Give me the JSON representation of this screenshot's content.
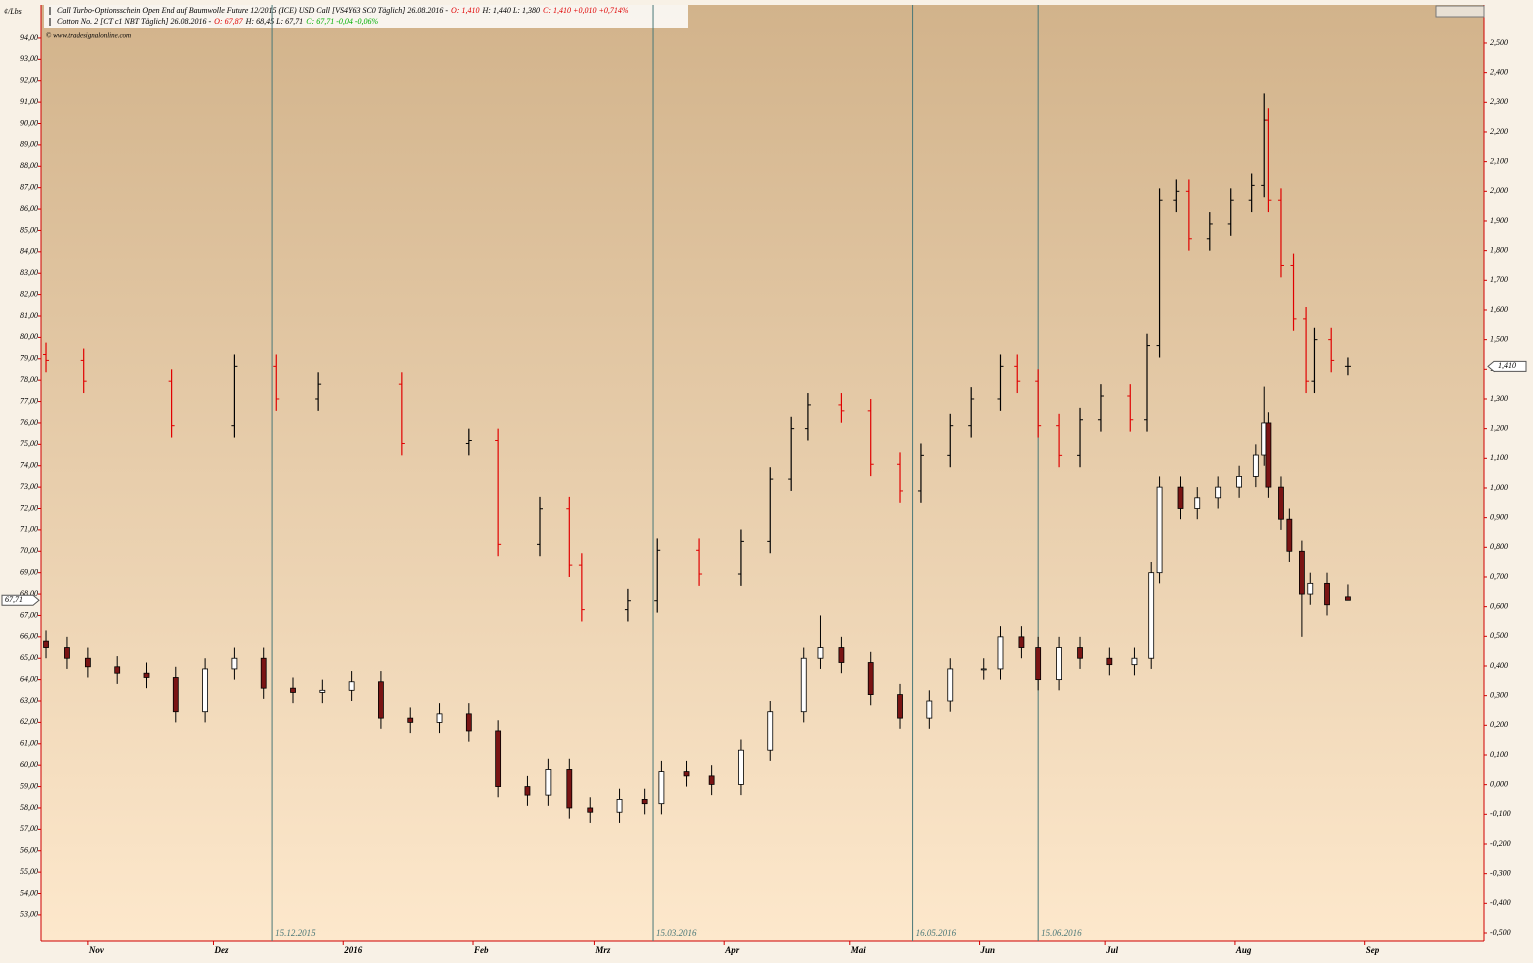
{
  "chart_data": {
    "type": "ohlc-combo",
    "y_unit": "¢/Lbs",
    "copyright": "© www.tradesignalonline.com",
    "legend": [
      {
        "parts": [
          {
            "text": "Call Turbo-Optionsschein Open End auf Baumwolle Future 12/2015 (ICE) USD Call [VS4Y63 SC0  Täglich] 26.08.2016 -",
            "color": "#000000"
          },
          {
            "text": "O: 1,410",
            "color": "#e00000"
          },
          {
            "text": "H: 1,440 L: 1,380",
            "color": "#000000"
          },
          {
            "text": "C: 1,410 +0,010 +0,714%",
            "color": "#e00000"
          }
        ]
      },
      {
        "parts": [
          {
            "text": "Cotton No. 2 [CT c1 NBT  Täglich] 26.08.2016 -",
            "color": "#000000"
          },
          {
            "text": "O: 67,87",
            "color": "#e00000"
          },
          {
            "text": "H: 68,45 L: 67,71",
            "color": "#000000"
          },
          {
            "text": "C: 67,71 -0,04 -0,06%",
            "color": "#00b000"
          }
        ]
      }
    ],
    "xlim": [
      -11.2,
      333.5
    ],
    "xticks": [
      {
        "value": 0,
        "label": "Nov"
      },
      {
        "value": 30,
        "label": "Dez"
      },
      {
        "value": 61,
        "label": "2016"
      },
      {
        "value": 92,
        "label": "Feb"
      },
      {
        "value": 121,
        "label": "Mrz"
      },
      {
        "value": 152,
        "label": "Apr"
      },
      {
        "value": 182,
        "label": "Mai"
      },
      {
        "value": 213,
        "label": "Jun"
      },
      {
        "value": 243,
        "label": "Jul"
      },
      {
        "value": 274,
        "label": "Aug"
      },
      {
        "value": 305,
        "label": "Sep"
      }
    ],
    "markers": [
      {
        "value": 44,
        "label": "15.12.2015"
      },
      {
        "value": 135,
        "label": "15.03.2016"
      },
      {
        "value": 197,
        "label": "16.05.2016"
      },
      {
        "value": 227,
        "label": "15.06.2016"
      }
    ],
    "marker_color": "#4a7878",
    "ylim": [
      51.78,
      95.54
    ],
    "yticks": [
      {
        "value": 53,
        "label": "53,00"
      },
      {
        "value": 54,
        "label": "54,00"
      },
      {
        "value": 55,
        "label": "55,00"
      },
      {
        "value": 56,
        "label": "56,00"
      },
      {
        "value": 57,
        "label": "57,00"
      },
      {
        "value": 58,
        "label": "58,00"
      },
      {
        "value": 59,
        "label": "59,00"
      },
      {
        "value": 60,
        "label": "60,00"
      },
      {
        "value": 61,
        "label": "61,00"
      },
      {
        "value": 62,
        "label": "62,00"
      },
      {
        "value": 63,
        "label": "63,00"
      },
      {
        "value": 64,
        "label": "64,00"
      },
      {
        "value": 65,
        "label": "65,00"
      },
      {
        "value": 66,
        "label": "66,00"
      },
      {
        "value": 67,
        "label": "67,00"
      },
      {
        "value": 68,
        "label": "68,00"
      },
      {
        "value": 69,
        "label": "69,00"
      },
      {
        "value": 70,
        "label": "70,00"
      },
      {
        "value": 71,
        "label": "71,00"
      },
      {
        "value": 72,
        "label": "72,00"
      },
      {
        "value": 73,
        "label": "73,00"
      },
      {
        "value": 74,
        "label": "74,00"
      },
      {
        "value": 75,
        "label": "75,00"
      },
      {
        "value": 76,
        "label": "76,00"
      },
      {
        "value": 77,
        "label": "77,00"
      },
      {
        "value": 78,
        "label": "78,00"
      },
      {
        "value": 79,
        "label": "79,00"
      },
      {
        "value": 80,
        "label": "80,00"
      },
      {
        "value": 81,
        "label": "81,00"
      },
      {
        "value": 82,
        "label": "82,00"
      },
      {
        "value": 83,
        "label": "83,00"
      },
      {
        "value": 84,
        "label": "84,00"
      },
      {
        "value": 85,
        "label": "85,00"
      },
      {
        "value": 86,
        "label": "86,00"
      },
      {
        "value": 87,
        "label": "87,00"
      },
      {
        "value": 88,
        "label": "88,00"
      },
      {
        "value": 89,
        "label": "89,00"
      },
      {
        "value": 90,
        "label": "90,00"
      },
      {
        "value": 91,
        "label": "91,00"
      },
      {
        "value": 92,
        "label": "92,00"
      },
      {
        "value": 93,
        "label": "93,00"
      },
      {
        "value": 94,
        "label": "94,00"
      }
    ],
    "y2lim": [
      -0.527,
      2.628
    ],
    "y2ticks": [
      {
        "value": -0.5,
        "label": "-0,500"
      },
      {
        "value": -0.4,
        "label": "-0,400"
      },
      {
        "value": -0.3,
        "label": "-0,300"
      },
      {
        "value": -0.2,
        "label": "-0,200"
      },
      {
        "value": -0.1,
        "label": "-0,100"
      },
      {
        "value": 0,
        "label": "0,000"
      },
      {
        "value": 0.1,
        "label": "0,100"
      },
      {
        "value": 0.2,
        "label": "0,200"
      },
      {
        "value": 0.3,
        "label": "0,300"
      },
      {
        "value": 0.4,
        "label": "0,400"
      },
      {
        "value": 0.5,
        "label": "0,500"
      },
      {
        "value": 0.6,
        "label": "0,600"
      },
      {
        "value": 0.7,
        "label": "0,700"
      },
      {
        "value": 0.8,
        "label": "0,800"
      },
      {
        "value": 0.9,
        "label": "0,900"
      },
      {
        "value": 1.0,
        "label": "1,000"
      },
      {
        "value": 1.1,
        "label": "1,100"
      },
      {
        "value": 1.2,
        "label": "1,200"
      },
      {
        "value": 1.3,
        "label": "1,300"
      },
      {
        "value": 1.4,
        "label": "1,400"
      },
      {
        "value": 1.5,
        "label": "1,500"
      },
      {
        "value": 1.6,
        "label": "1,600"
      },
      {
        "value": 1.7,
        "label": "1,700"
      },
      {
        "value": 1.8,
        "label": "1,800"
      },
      {
        "value": 1.9,
        "label": "1,900"
      },
      {
        "value": 2.0,
        "label": "2,000"
      },
      {
        "value": 2.1,
        "label": "2,100"
      },
      {
        "value": 2.2,
        "label": "2,200"
      },
      {
        "value": 2.3,
        "label": "2,300"
      },
      {
        "value": 2.4,
        "label": "2,400"
      },
      {
        "value": 2.5,
        "label": "2,500"
      }
    ],
    "series": [
      {
        "style": "candle",
        "axis": "y",
        "up_color": "#ffffff",
        "down_color": "#7a1414",
        "last_label": "67,71",
        "x": [
          -10,
          -5,
          0,
          7,
          14,
          21,
          28,
          35,
          42,
          49,
          56,
          63,
          70,
          77,
          84,
          91,
          98,
          105,
          110,
          115,
          120,
          127,
          133,
          137,
          143,
          149,
          156,
          163,
          171,
          175,
          180,
          187,
          194,
          201,
          206,
          214,
          218,
          223,
          227,
          232,
          237,
          244,
          250,
          254,
          256,
          261,
          265,
          270,
          275,
          279,
          281,
          282,
          285,
          287,
          290,
          292,
          296,
          301
        ],
        "open": [
          65.8,
          65.5,
          65.0,
          64.6,
          64.3,
          64.1,
          62.5,
          64.5,
          65.0,
          63.6,
          63.4,
          63.5,
          63.9,
          62.2,
          62.0,
          62.4,
          61.6,
          59.0,
          58.6,
          59.8,
          58.0,
          57.8,
          58.4,
          58.2,
          59.7,
          59.5,
          59.1,
          60.7,
          62.5,
          65.0,
          65.5,
          64.8,
          63.3,
          62.2,
          63.0,
          64.5,
          64.5,
          66.0,
          65.5,
          64.0,
          65.5,
          65.0,
          64.7,
          65.0,
          69.0,
          73.0,
          72.0,
          72.5,
          73.0,
          73.5,
          74.5,
          76.0,
          73.0,
          71.5,
          70.0,
          68.0,
          68.5,
          67.87
        ],
        "high": [
          66.3,
          66.0,
          65.5,
          65.1,
          64.8,
          64.6,
          65.0,
          65.5,
          65.5,
          64.1,
          64.0,
          64.4,
          64.4,
          62.7,
          62.9,
          62.9,
          62.1,
          59.5,
          60.3,
          60.3,
          58.5,
          58.9,
          58.9,
          60.2,
          60.2,
          60.0,
          61.2,
          63.0,
          65.5,
          67.0,
          66.0,
          65.3,
          63.8,
          63.5,
          65.0,
          65.0,
          66.5,
          66.5,
          66.0,
          66.0,
          66.0,
          65.5,
          65.5,
          69.5,
          73.5,
          73.5,
          73.0,
          73.5,
          74.0,
          75.0,
          77.7,
          76.5,
          73.5,
          72.0,
          70.5,
          69.0,
          69.0,
          68.45
        ],
        "low": [
          65.0,
          64.5,
          64.1,
          63.8,
          63.6,
          62.0,
          62.0,
          64.0,
          63.1,
          62.9,
          62.9,
          63.0,
          61.7,
          61.5,
          61.5,
          61.1,
          58.5,
          58.1,
          58.1,
          57.5,
          57.3,
          57.3,
          57.7,
          57.7,
          59.0,
          58.6,
          58.6,
          60.2,
          62.0,
          64.5,
          64.3,
          62.8,
          61.7,
          61.7,
          62.5,
          64.0,
          64.0,
          65.0,
          63.5,
          63.5,
          64.5,
          64.2,
          64.2,
          64.5,
          68.5,
          71.5,
          71.5,
          72.0,
          72.5,
          73.0,
          74.0,
          72.5,
          71.0,
          69.5,
          66.0,
          67.5,
          67.0,
          67.71
        ],
        "close": [
          65.5,
          65.0,
          64.6,
          64.3,
          64.1,
          62.5,
          64.5,
          65.0,
          63.6,
          63.4,
          63.5,
          63.9,
          62.2,
          62.0,
          62.4,
          61.6,
          59.0,
          58.6,
          59.8,
          58.0,
          57.8,
          58.4,
          58.2,
          59.7,
          59.5,
          59.1,
          60.7,
          62.5,
          65.0,
          65.5,
          64.8,
          63.3,
          62.2,
          63.0,
          64.5,
          64.5,
          66.0,
          65.5,
          64.0,
          65.5,
          65.0,
          64.7,
          65.0,
          69.0,
          73.0,
          72.0,
          72.5,
          73.0,
          73.5,
          74.5,
          76.0,
          73.0,
          71.5,
          70.0,
          68.0,
          68.5,
          67.5,
          67.71
        ]
      },
      {
        "style": "bar",
        "axis": "y2",
        "up_color": "#000000",
        "down_color": "#e00000",
        "last_label": "1,410",
        "x": [
          -10,
          -1,
          20,
          35,
          45,
          55,
          75,
          91,
          98,
          108,
          115,
          118,
          129,
          136,
          146,
          156,
          163,
          168,
          172,
          180,
          187,
          194,
          199,
          206,
          211,
          218,
          222,
          227,
          232,
          237,
          242,
          249,
          253,
          256,
          260,
          263,
          268,
          273,
          278,
          281,
          282,
          285,
          288,
          291,
          293,
          297,
          301
        ],
        "open": [
          1.45,
          1.43,
          1.36,
          1.21,
          1.41,
          1.3,
          1.35,
          1.15,
          1.16,
          0.81,
          0.93,
          0.74,
          0.59,
          0.62,
          0.79,
          0.71,
          0.82,
          1.03,
          1.2,
          1.28,
          1.26,
          1.08,
          0.99,
          1.11,
          1.21,
          1.3,
          1.41,
          1.36,
          1.21,
          1.11,
          1.23,
          1.31,
          1.23,
          1.48,
          1.97,
          2.0,
          1.84,
          1.89,
          1.97,
          2.02,
          2.24,
          1.97,
          1.75,
          1.57,
          1.36,
          1.5,
          1.41
        ],
        "high": [
          1.49,
          1.47,
          1.4,
          1.45,
          1.45,
          1.39,
          1.39,
          1.2,
          1.2,
          0.97,
          0.97,
          0.78,
          0.66,
          0.83,
          0.83,
          0.86,
          1.07,
          1.24,
          1.32,
          1.32,
          1.3,
          1.12,
          1.15,
          1.25,
          1.34,
          1.45,
          1.45,
          1.4,
          1.25,
          1.27,
          1.35,
          1.35,
          1.52,
          2.01,
          2.04,
          2.04,
          1.93,
          2.01,
          2.06,
          2.33,
          2.28,
          2.01,
          1.79,
          1.61,
          1.54,
          1.54,
          1.44
        ],
        "low": [
          1.39,
          1.32,
          1.17,
          1.17,
          1.26,
          1.26,
          1.11,
          1.11,
          0.77,
          0.77,
          0.7,
          0.55,
          0.55,
          0.58,
          0.67,
          0.67,
          0.78,
          0.99,
          1.16,
          1.22,
          1.04,
          0.95,
          0.95,
          1.07,
          1.17,
          1.26,
          1.32,
          1.17,
          1.07,
          1.07,
          1.19,
          1.19,
          1.19,
          1.44,
          1.93,
          1.8,
          1.8,
          1.85,
          1.93,
          1.98,
          1.93,
          1.71,
          1.53,
          1.32,
          1.32,
          1.39,
          1.38
        ],
        "close": [
          1.43,
          1.36,
          1.21,
          1.41,
          1.3,
          1.35,
          1.15,
          1.16,
          0.81,
          0.93,
          0.74,
          0.59,
          0.62,
          0.79,
          0.71,
          0.82,
          1.03,
          1.2,
          1.28,
          1.26,
          1.08,
          0.99,
          1.11,
          1.21,
          1.3,
          1.41,
          1.36,
          1.21,
          1.11,
          1.23,
          1.31,
          1.23,
          1.48,
          1.97,
          2.0,
          1.84,
          1.89,
          1.97,
          2.02,
          2.24,
          1.97,
          1.75,
          1.57,
          1.36,
          1.5,
          1.43,
          1.41
        ]
      }
    ]
  }
}
